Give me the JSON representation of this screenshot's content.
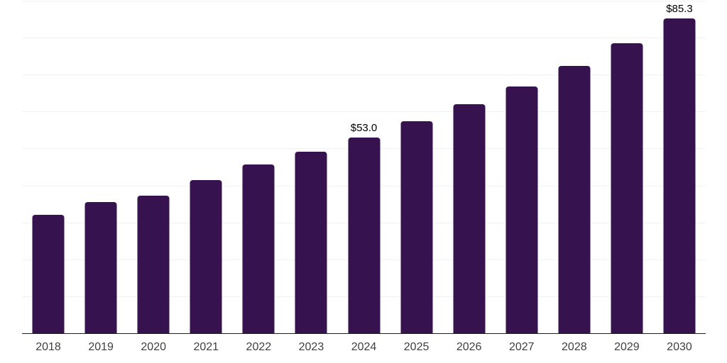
{
  "chart_data": {
    "type": "bar",
    "title": "",
    "xlabel": "",
    "ylabel": "",
    "categories": [
      "2018",
      "2019",
      "2020",
      "2021",
      "2022",
      "2023",
      "2024",
      "2025",
      "2026",
      "2027",
      "2028",
      "2029",
      "2030"
    ],
    "values": [
      32.1,
      35.5,
      37.2,
      41.4,
      45.7,
      49.1,
      53.0,
      57.4,
      62.0,
      66.8,
      72.3,
      78.5,
      85.3
    ],
    "value_labels": [
      "",
      "",
      "",
      "",
      "",
      "",
      "$53.0",
      "",
      "",
      "",
      "",
      "",
      "$85.3"
    ],
    "ylim": [
      0,
      90
    ],
    "gridline_step": 10,
    "grid": true,
    "legend": false,
    "colors": {
      "bar": "#36124E",
      "axis_line": "#1f1f1f",
      "gridline": "#f2f2f2",
      "tick_label": "#3f3f3f",
      "data_label": "#000000",
      "background": "#ffffff"
    }
  }
}
